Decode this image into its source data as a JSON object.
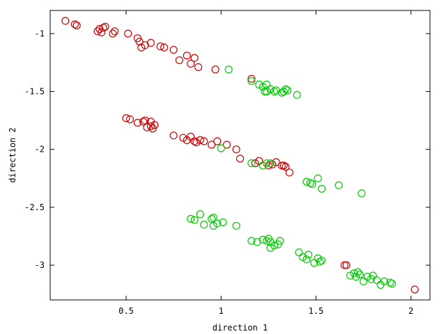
{
  "chart_data": {
    "type": "scatter",
    "xlabel": "direction 1",
    "ylabel": "direction 2",
    "xlim": [
      0.1,
      2.1
    ],
    "ylim": [
      -3.3,
      -0.8
    ],
    "xticks": [
      0.5,
      1,
      1.5,
      2
    ],
    "xtick_labels": [
      "0.5",
      "1",
      "1.5",
      "2"
    ],
    "yticks": [
      -1,
      -1.5,
      -2,
      -2.5,
      -3
    ],
    "ytick_labels": [
      "-1",
      "-1.5",
      "-2",
      "-2.5",
      "-3"
    ],
    "grid": false,
    "legend": false,
    "marker": "open-circle",
    "series": [
      {
        "color": "#cc0000",
        "points": [
          [
            0.18,
            -0.89
          ],
          [
            0.23,
            -0.92
          ],
          [
            0.24,
            -0.93
          ],
          [
            0.35,
            -0.98
          ],
          [
            0.36,
            -0.96
          ],
          [
            0.37,
            -0.99
          ],
          [
            0.38,
            -0.95
          ],
          [
            0.39,
            -0.94
          ],
          [
            0.43,
            -1.0
          ],
          [
            0.44,
            -0.98
          ],
          [
            0.51,
            -1.0
          ],
          [
            0.56,
            -1.04
          ],
          [
            0.57,
            -1.07
          ],
          [
            0.58,
            -1.12
          ],
          [
            0.6,
            -1.1
          ],
          [
            0.63,
            -1.08
          ],
          [
            0.68,
            -1.11
          ],
          [
            0.7,
            -1.12
          ],
          [
            0.75,
            -1.14
          ],
          [
            0.78,
            -1.23
          ],
          [
            0.82,
            -1.19
          ],
          [
            0.84,
            -1.26
          ],
          [
            0.86,
            -1.21
          ],
          [
            0.88,
            -1.29
          ],
          [
            0.97,
            -1.31
          ],
          [
            1.16,
            -1.39
          ],
          [
            0.5,
            -1.73
          ],
          [
            0.52,
            -1.74
          ],
          [
            0.56,
            -1.77
          ],
          [
            0.59,
            -1.76
          ],
          [
            0.6,
            -1.75
          ],
          [
            0.61,
            -1.81
          ],
          [
            0.63,
            -1.76
          ],
          [
            0.64,
            -1.82
          ],
          [
            0.65,
            -1.79
          ],
          [
            0.63,
            -1.8
          ],
          [
            0.75,
            -1.88
          ],
          [
            0.8,
            -1.9
          ],
          [
            0.82,
            -1.92
          ],
          [
            0.84,
            -1.89
          ],
          [
            0.86,
            -1.93
          ],
          [
            0.87,
            -1.94
          ],
          [
            0.89,
            -1.92
          ],
          [
            0.91,
            -1.93
          ],
          [
            0.95,
            -1.96
          ],
          [
            0.98,
            -1.93
          ],
          [
            1.03,
            -1.96
          ],
          [
            1.08,
            -2.0
          ],
          [
            1.1,
            -2.08
          ],
          [
            1.18,
            -2.12
          ],
          [
            1.2,
            -2.1
          ],
          [
            1.25,
            -2.14
          ],
          [
            1.27,
            -2.13
          ],
          [
            1.29,
            -2.11
          ],
          [
            1.32,
            -2.14
          ],
          [
            1.33,
            -2.14
          ],
          [
            1.34,
            -2.15
          ],
          [
            1.36,
            -2.2
          ],
          [
            1.65,
            -3.0
          ],
          [
            1.66,
            -3.0
          ],
          [
            2.02,
            -3.21
          ]
        ]
      },
      {
        "color": "#00cc00",
        "points": [
          [
            1.04,
            -1.31
          ],
          [
            1.16,
            -1.41
          ],
          [
            1.2,
            -1.44
          ],
          [
            1.22,
            -1.46
          ],
          [
            1.23,
            -1.5
          ],
          [
            1.24,
            -1.44
          ],
          [
            1.26,
            -1.48
          ],
          [
            1.24,
            -1.5
          ],
          [
            1.28,
            -1.5
          ],
          [
            1.29,
            -1.49
          ],
          [
            1.32,
            -1.51
          ],
          [
            1.33,
            -1.5
          ],
          [
            1.34,
            -1.48
          ],
          [
            1.35,
            -1.49
          ],
          [
            1.4,
            -1.53
          ],
          [
            1.0,
            -1.99
          ],
          [
            1.16,
            -2.12
          ],
          [
            1.22,
            -2.14
          ],
          [
            1.24,
            -2.12
          ],
          [
            1.26,
            -2.12
          ],
          [
            1.45,
            -2.28
          ],
          [
            1.47,
            -2.29
          ],
          [
            1.48,
            -2.3
          ],
          [
            1.51,
            -2.25
          ],
          [
            1.53,
            -2.34
          ],
          [
            1.62,
            -2.31
          ],
          [
            1.74,
            -2.38
          ],
          [
            0.84,
            -2.6
          ],
          [
            0.86,
            -2.61
          ],
          [
            0.89,
            -2.56
          ],
          [
            0.91,
            -2.65
          ],
          [
            0.95,
            -2.6
          ],
          [
            0.96,
            -2.59
          ],
          [
            0.96,
            -2.66
          ],
          [
            0.98,
            -2.64
          ],
          [
            1.01,
            -2.63
          ],
          [
            1.08,
            -2.66
          ],
          [
            1.16,
            -2.79
          ],
          [
            1.19,
            -2.8
          ],
          [
            1.22,
            -2.78
          ],
          [
            1.24,
            -2.79
          ],
          [
            1.25,
            -2.77
          ],
          [
            1.26,
            -2.8
          ],
          [
            1.26,
            -2.85
          ],
          [
            1.28,
            -2.83
          ],
          [
            1.3,
            -2.82
          ],
          [
            1.31,
            -2.79
          ],
          [
            1.41,
            -2.89
          ],
          [
            1.43,
            -2.93
          ],
          [
            1.45,
            -2.95
          ],
          [
            1.46,
            -2.91
          ],
          [
            1.49,
            -2.98
          ],
          [
            1.51,
            -2.94
          ],
          [
            1.52,
            -2.97
          ],
          [
            1.53,
            -2.96
          ],
          [
            1.68,
            -3.09
          ],
          [
            1.7,
            -3.07
          ],
          [
            1.71,
            -3.1
          ],
          [
            1.73,
            -3.08
          ],
          [
            1.75,
            -3.14
          ],
          [
            1.77,
            -3.1
          ],
          [
            1.79,
            -3.12
          ],
          [
            1.8,
            -3.09
          ],
          [
            1.82,
            -3.13
          ],
          [
            1.84,
            -3.17
          ],
          [
            1.86,
            -3.14
          ],
          [
            1.89,
            -3.15
          ],
          [
            1.9,
            -3.16
          ],
          [
            1.72,
            -3.06
          ]
        ]
      }
    ]
  }
}
